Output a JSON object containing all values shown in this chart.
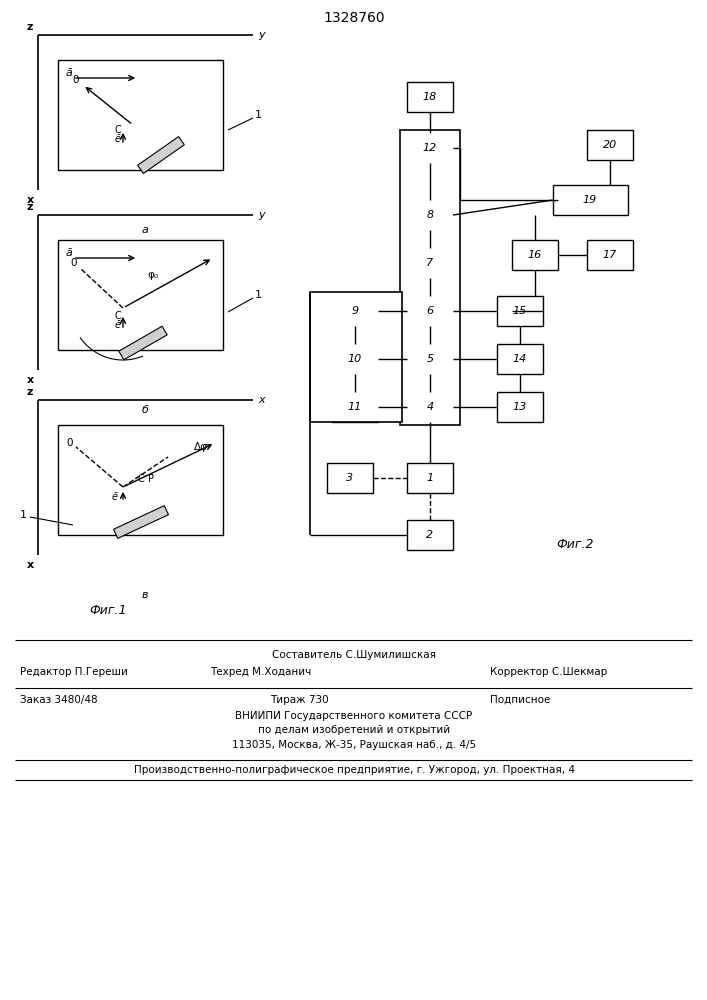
{
  "title": "1328760",
  "fig1_label": "Фиг.1",
  "fig2_label": "Фиг.2",
  "footer": {
    "line1_center": "Составитель С.Шумилишская",
    "line2_left": "Редактор П.Гереши",
    "line2_center": "Техред М.Ходанич",
    "line2_right": "Корректор С.Шекмар",
    "line3_left": "Заказ 3480/48",
    "line3_center": "Тираж 730",
    "line3_right": "Подписное",
    "line4": "ВНИИПИ Государственного комитета СССР",
    "line5": "по делам изобретений и открытий",
    "line6": "113035, Москва, Ж-35, Раушская наб., д. 4/5",
    "line7": "Производственно-полиграфическое предприятие, г. Ужгород, ул. Проектная, 4"
  }
}
